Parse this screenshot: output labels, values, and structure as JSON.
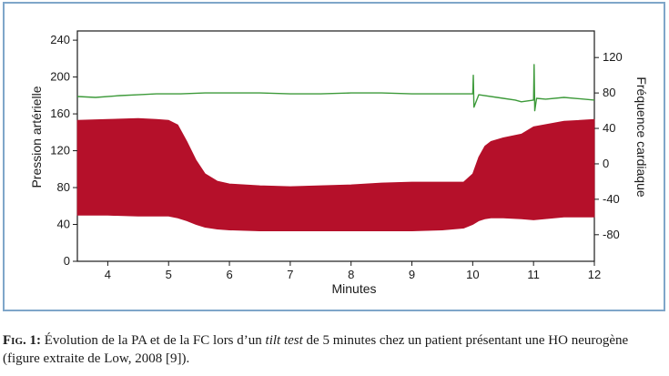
{
  "chart_data": {
    "type": "area",
    "xlabel": "Minutes",
    "ylabel_left": "Pression artérielle",
    "ylabel_right": "Fréquence cardiaque",
    "xlim": [
      3.5,
      12
    ],
    "ylim_left": [
      0,
      250
    ],
    "ylim_right": [
      -110,
      150
    ],
    "x_ticks": [
      4,
      5,
      6,
      7,
      8,
      9,
      10,
      11,
      12
    ],
    "y_ticks_left": [
      0,
      40,
      80,
      120,
      160,
      200,
      240
    ],
    "y_ticks_right": [
      -80,
      -40,
      0,
      40,
      80,
      120
    ],
    "y_tick_labels_right": [
      "-80",
      "-40",
      "0",
      "40",
      "80",
      "120"
    ],
    "grid": false,
    "series": [
      {
        "axis": "left",
        "style": "band",
        "color": "#b5102a",
        "x": [
          3.5,
          4.0,
          4.5,
          4.8,
          5.0,
          5.15,
          5.3,
          5.45,
          5.6,
          5.8,
          6.0,
          6.5,
          7.0,
          7.5,
          8.0,
          8.5,
          9.0,
          9.5,
          9.85,
          10.0,
          10.1,
          10.2,
          10.3,
          10.5,
          10.8,
          11.0,
          11.5,
          12.0
        ],
        "upper": [
          153,
          154,
          155,
          154,
          153,
          148,
          130,
          110,
          95,
          87,
          84,
          82,
          81,
          82,
          83,
          85,
          86,
          86,
          86,
          95,
          113,
          125,
          130,
          134,
          138,
          146,
          152,
          154
        ],
        "lower": [
          50,
          50,
          49,
          49,
          49,
          47,
          44,
          40,
          37,
          35,
          34,
          33,
          33,
          33,
          33,
          33,
          33,
          34,
          36,
          40,
          44,
          46,
          47,
          47,
          46,
          45,
          48,
          48
        ]
      },
      {
        "axis": "right",
        "style": "line",
        "color": "#3d9a3a",
        "x": [
          3.5,
          3.8,
          4.2,
          4.5,
          4.8,
          5.2,
          5.6,
          6.0,
          6.5,
          7.0,
          7.5,
          8.0,
          8.5,
          9.0,
          9.5,
          9.9,
          10.0,
          10.01,
          10.02,
          10.1,
          10.4,
          10.5,
          10.7,
          10.8,
          11.0,
          11.01,
          11.02,
          11.05,
          11.2,
          11.5,
          12.0
        ],
        "values": [
          76,
          75,
          77,
          78,
          79,
          79,
          80,
          80,
          80,
          79,
          79,
          80,
          80,
          79,
          79,
          79,
          79,
          100,
          64,
          78,
          75,
          74,
          72,
          70,
          72,
          112,
          60,
          74,
          73,
          75,
          72
        ]
      }
    ]
  },
  "caption": {
    "lead": "Fig. 1:",
    "text_before": " Évolution de la PA et de la FC lors d’un ",
    "em": "tilt test",
    "text_after": " de 5 minutes chez un patient présentant une HO neurogène (figure extraite de Low, 2008 [9])."
  }
}
